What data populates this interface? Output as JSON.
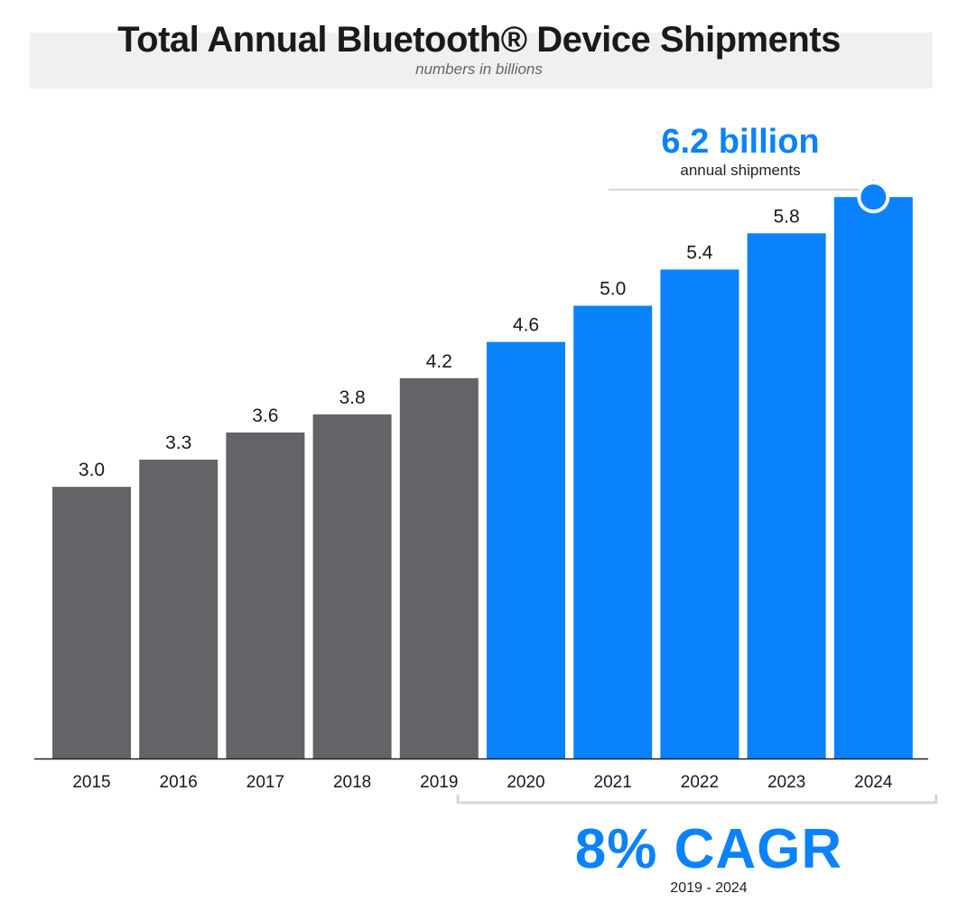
{
  "header": {
    "title": "Total Annual Bluetooth® Device Shipments",
    "subtitle": "numbers in billions"
  },
  "callout": {
    "value": "6.2 billion",
    "label": "annual shipments"
  },
  "cagr": {
    "value": "8% CAGR",
    "period": "2019 - 2024"
  },
  "colors": {
    "historical": "#636468",
    "forecast": "#0a82fb",
    "axis": "#222222",
    "bracket": "#d8d8d0",
    "connector": "#c8c8c8"
  },
  "chart_data": {
    "type": "bar",
    "title": "Total Annual Bluetooth® Device Shipments",
    "subtitle": "numbers in billions",
    "categories": [
      "2015",
      "2016",
      "2017",
      "2018",
      "2019",
      "2020",
      "2021",
      "2022",
      "2023",
      "2024"
    ],
    "values": [
      3.0,
      3.3,
      3.6,
      3.8,
      4.2,
      4.6,
      5.0,
      5.4,
      5.8,
      6.2
    ],
    "value_labels": [
      "3.0",
      "3.3",
      "3.6",
      "3.8",
      "4.2",
      "4.6",
      "5.0",
      "5.4",
      "5.8",
      ""
    ],
    "bar_colors": [
      "#636468",
      "#636468",
      "#636468",
      "#636468",
      "#636468",
      "#0a82fb",
      "#0a82fb",
      "#0a82fb",
      "#0a82fb",
      "#0a82fb"
    ],
    "highlight_category": "2024",
    "bracket_range": [
      "2020",
      "2024"
    ],
    "ylim": [
      0,
      7
    ],
    "grid": false,
    "legend": "none"
  }
}
